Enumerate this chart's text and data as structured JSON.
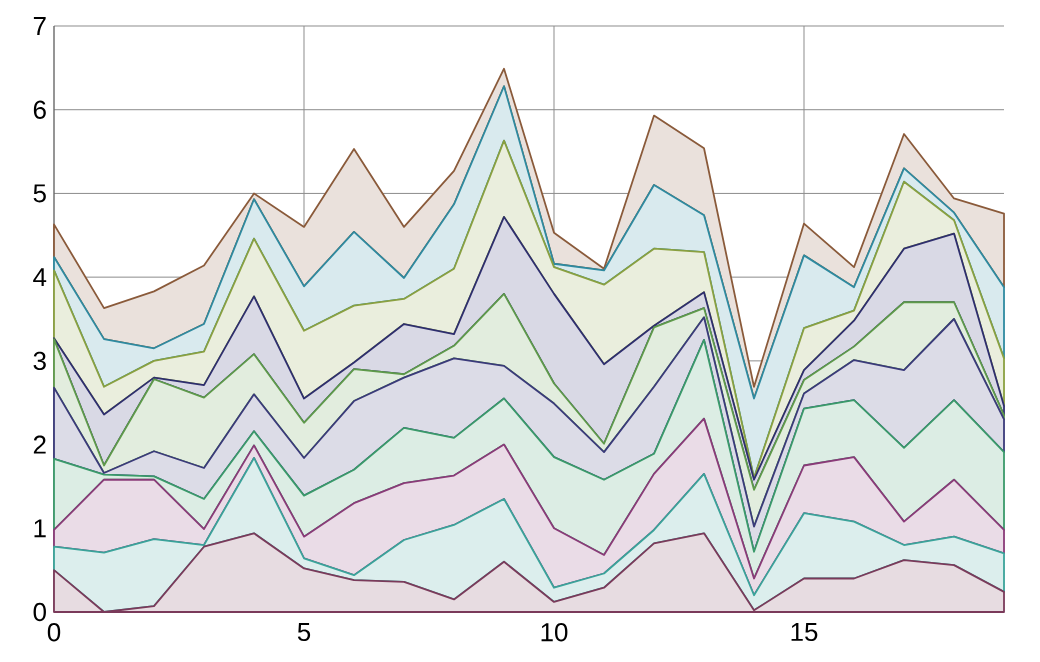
{
  "chart_data": {
    "type": "area",
    "stacked": true,
    "grid": true,
    "x": [
      0,
      1,
      2,
      3,
      4,
      5,
      6,
      7,
      8,
      9,
      10,
      11,
      12,
      13,
      14,
      15,
      16,
      17,
      18,
      19
    ],
    "xlim": [
      0,
      19
    ],
    "xticks": [
      0,
      5,
      10,
      15
    ],
    "ylim": [
      0,
      7
    ],
    "yticks": [
      0,
      1,
      2,
      3,
      4,
      5,
      6,
      7
    ],
    "series": [
      {
        "color": "#7a3a5a",
        "values": [
          0.5,
          0,
          0.07,
          0.78,
          0.94,
          0.52,
          0.38,
          0.36,
          0.15,
          0.6,
          0.12,
          0.29,
          0.82,
          0.94,
          0.02,
          0.4,
          0.4,
          0.62,
          0.56,
          0.24
        ]
      },
      {
        "color": "#3aa39a",
        "values": [
          0.28,
          0.71,
          0.8,
          0.02,
          0.9,
          0.12,
          0.06,
          0.5,
          0.89,
          0.75,
          0.17,
          0.17,
          0.16,
          0.71,
          0.18,
          0.78,
          0.68,
          0.18,
          0.34,
          0.46
        ]
      },
      {
        "color": "#8a3a78",
        "values": [
          0.2,
          0.87,
          0.71,
          0.19,
          0.15,
          0.26,
          0.86,
          0.68,
          0.59,
          0.65,
          0.71,
          0.22,
          0.67,
          0.66,
          0.2,
          0.57,
          0.77,
          0.28,
          0.68,
          0.28
        ]
      },
      {
        "color": "#3a9a6a",
        "values": [
          0.85,
          0.06,
          0.04,
          0.36,
          0.17,
          0.49,
          0.4,
          0.66,
          0.45,
          0.55,
          0.85,
          0.9,
          0.24,
          0.94,
          0.32,
          0.68,
          0.68,
          0.88,
          0.95,
          0.93
        ]
      },
      {
        "color": "#3a3a7a",
        "values": [
          0.85,
          0.02,
          0.3,
          0.37,
          0.44,
          0.45,
          0.82,
          0.6,
          0.95,
          0.39,
          0.64,
          0.33,
          0.8,
          0.27,
          0.3,
          0.18,
          0.48,
          0.93,
          0.97,
          0.39
        ]
      },
      {
        "color": "#5e9a4a",
        "values": [
          0.58,
          0.09,
          0.86,
          0.84,
          0.48,
          0.42,
          0.38,
          0.04,
          0.15,
          0.86,
          0.24,
          0.1,
          0.71,
          0.11,
          0.44,
          0.16,
          0.16,
          0.81,
          0.2,
          0.05
        ]
      },
      {
        "color": "#2e2e6e",
        "values": [
          0.01,
          0.61,
          0.02,
          0.15,
          0.69,
          0.29,
          0.08,
          0.6,
          0.14,
          0.92,
          1.07,
          0.95,
          0.02,
          0.19,
          0.12,
          0.12,
          0.31,
          0.64,
          0.82,
          0.11
        ]
      },
      {
        "color": "#8aa040",
        "values": [
          0.81,
          0.33,
          0.2,
          0.4,
          0.69,
          0.81,
          0.68,
          0.3,
          0.78,
          0.91,
          0.32,
          0.95,
          0.92,
          0.48,
          0.02,
          0.5,
          0.12,
          0.8,
          0.16,
          0.57
        ]
      },
      {
        "color": "#2e8aa0",
        "values": [
          0.16,
          0.57,
          0.15,
          0.33,
          0.47,
          0.53,
          0.88,
          0.25,
          0.77,
          0.65,
          0.04,
          0.17,
          0.76,
          0.44,
          0.95,
          0.87,
          0.28,
          0.16,
          0.09,
          0.85
        ]
      },
      {
        "color": "#8a5a3a",
        "values": [
          0.39,
          0.37,
          0.68,
          0.7,
          0.07,
          0.71,
          0.99,
          0.61,
          0.4,
          0.21,
          0.37,
          0.02,
          0.83,
          0.8,
          0.14,
          0.38,
          0.24,
          0.41,
          0.17,
          0.88
        ]
      }
    ]
  }
}
